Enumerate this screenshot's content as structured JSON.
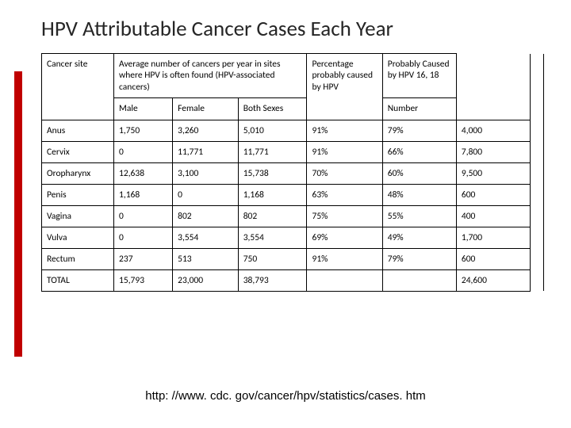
{
  "title": "HPV Attributable Cancer Cases Each Year",
  "headers": {
    "site": "Cancer site",
    "avg_group": "Average number of cancers per year in sites where HPV is often found (HPV-associated cancers)",
    "male": "Male",
    "female": "Female",
    "both": "Both Sexes",
    "pct": "Percentage probably caused by HPV",
    "prob": "Probably Caused by HPV 16, 18",
    "num": "Number"
  },
  "rows": [
    {
      "site": "Anus",
      "male": "1,750",
      "female": "3,260",
      "both": "5,010",
      "pct": "91%",
      "prob": "79%",
      "num": "4,000"
    },
    {
      "site": "Cervix",
      "male": "0",
      "female": "11,771",
      "both": "11,771",
      "pct": "91%",
      "prob": "66%",
      "num": "7,800"
    },
    {
      "site": "Oropharynx",
      "male": "12,638",
      "female": "3,100",
      "both": "15,738",
      "pct": "70%",
      "prob": "60%",
      "num": "9,500"
    },
    {
      "site": "Penis",
      "male": "1,168",
      "female": "0",
      "both": "1,168",
      "pct": "63%",
      "prob": "48%",
      "num": "600"
    },
    {
      "site": "Vagina",
      "male": "0",
      "female": "802",
      "both": "802",
      "pct": "75%",
      "prob": "55%",
      "num": "400"
    },
    {
      "site": "Vulva",
      "male": "0",
      "female": "3,554",
      "both": "3,554",
      "pct": "69%",
      "prob": "49%",
      "num": "1,700"
    },
    {
      "site": "Rectum",
      "male": "237",
      "female": "513",
      "both": "750",
      "pct": "91%",
      "prob": "79%",
      "num": "600"
    },
    {
      "site": "TOTAL",
      "male": "15,793",
      "female": "23,000",
      "both": "38,793",
      "pct": "",
      "prob": "",
      "num": "24,600"
    }
  ],
  "footer": "http: //www. cdc. gov/cancer/hpv/statistics/cases. htm",
  "colors": {
    "accent": "#c00000",
    "border": "#000000",
    "text": "#000000",
    "title": "#262626",
    "bg": "#ffffff"
  }
}
